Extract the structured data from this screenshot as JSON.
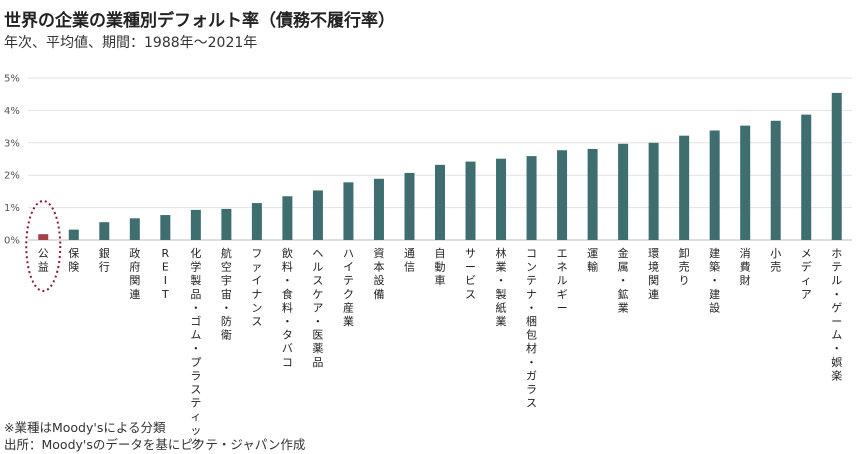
{
  "header": {
    "title": "世界の企業の業種別デフォルト率（債務不履行率）",
    "subtitle": "年次、平均値、期間：1988年～2021年"
  },
  "notes": {
    "note1": "※業種はMoody'sによる分類",
    "note2": "出所：Moody'sのデータを基にピクテ・ジャパン作成"
  },
  "colors": {
    "bar": "#3e6e70",
    "highlight": "#a3414b",
    "grid": "#e2e2e2",
    "ellipse": "#8b1a2a"
  },
  "chart_data": {
    "type": "bar",
    "ylim": [
      0,
      5
    ],
    "yticks": [
      "0%",
      "1%",
      "2%",
      "3%",
      "4%",
      "5%"
    ],
    "grid": true,
    "highlight_category": "公益",
    "categories": [
      "公益",
      "保険",
      "銀行",
      "政府関連",
      "REIT",
      "化学製品・ゴム・プラスティック",
      "航空宇宙・防衛",
      "ファイナンス",
      "飲料・食料・タバコ",
      "ヘルスケア・医薬品",
      "ハイテク産業",
      "資本設備",
      "通信",
      "自動車",
      "サービス",
      "林業・製紙業",
      "コンテナ・梱包材・ガラス",
      "エネルギー",
      "運輸",
      "金属・鉱業",
      "環境関連",
      "卸売り",
      "建築・建設",
      "消費財",
      "小売",
      "メディア",
      "ホテル・ゲーム・娯楽"
    ],
    "values": [
      0.18,
      0.32,
      0.55,
      0.67,
      0.77,
      0.93,
      0.96,
      1.14,
      1.35,
      1.53,
      1.78,
      1.89,
      2.07,
      2.32,
      2.42,
      2.51,
      2.59,
      2.77,
      2.81,
      2.97,
      3.0,
      3.22,
      3.38,
      3.53,
      3.68,
      3.87,
      4.54
    ]
  }
}
